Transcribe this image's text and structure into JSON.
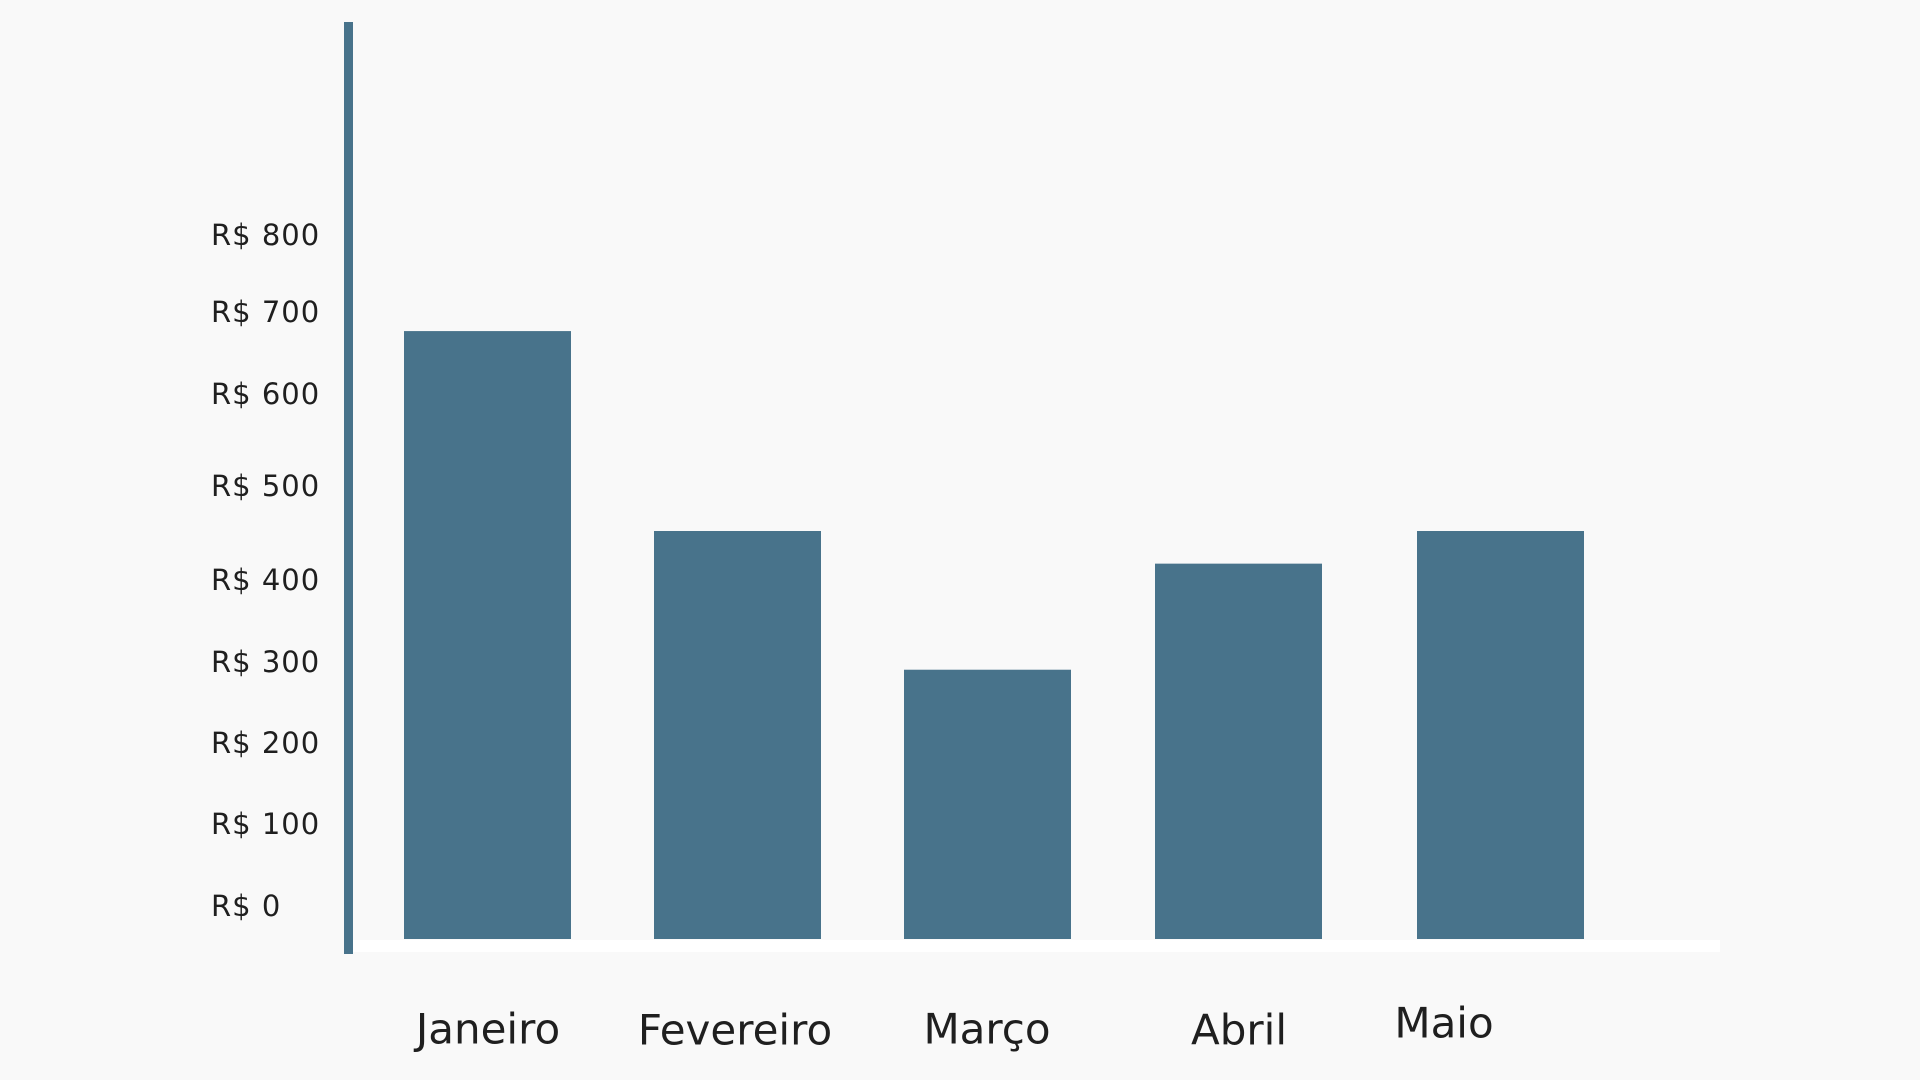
{
  "colors": {
    "background": "#f9f9f9",
    "bar": "#48738b",
    "axis": "#48738b",
    "baseline": "#ffffff",
    "text": "#1f1f1f"
  },
  "chart_data": {
    "type": "bar",
    "title": "",
    "xlabel": "",
    "ylabel": "",
    "categories": [
      "Janeiro",
      "Fevereiro",
      "Março",
      "Abril",
      "Maio"
    ],
    "values": [
      745,
      500,
      330,
      460,
      500
    ],
    "ylim": [
      0,
      1000
    ],
    "y_ticks": [
      {
        "value": 0,
        "label": "R$ 0"
      },
      {
        "value": 100,
        "label": "R$ 100"
      },
      {
        "value": 200,
        "label": "R$ 200"
      },
      {
        "value": 300,
        "label": "R$ 300"
      },
      {
        "value": 400,
        "label": "R$ 400"
      },
      {
        "value": 500,
        "label": "R$ 500"
      },
      {
        "value": 600,
        "label": "R$ 600"
      },
      {
        "value": 700,
        "label": "R$ 700"
      },
      {
        "value": 800,
        "label": "R$ 800"
      }
    ],
    "grid": false,
    "legend": "none"
  }
}
